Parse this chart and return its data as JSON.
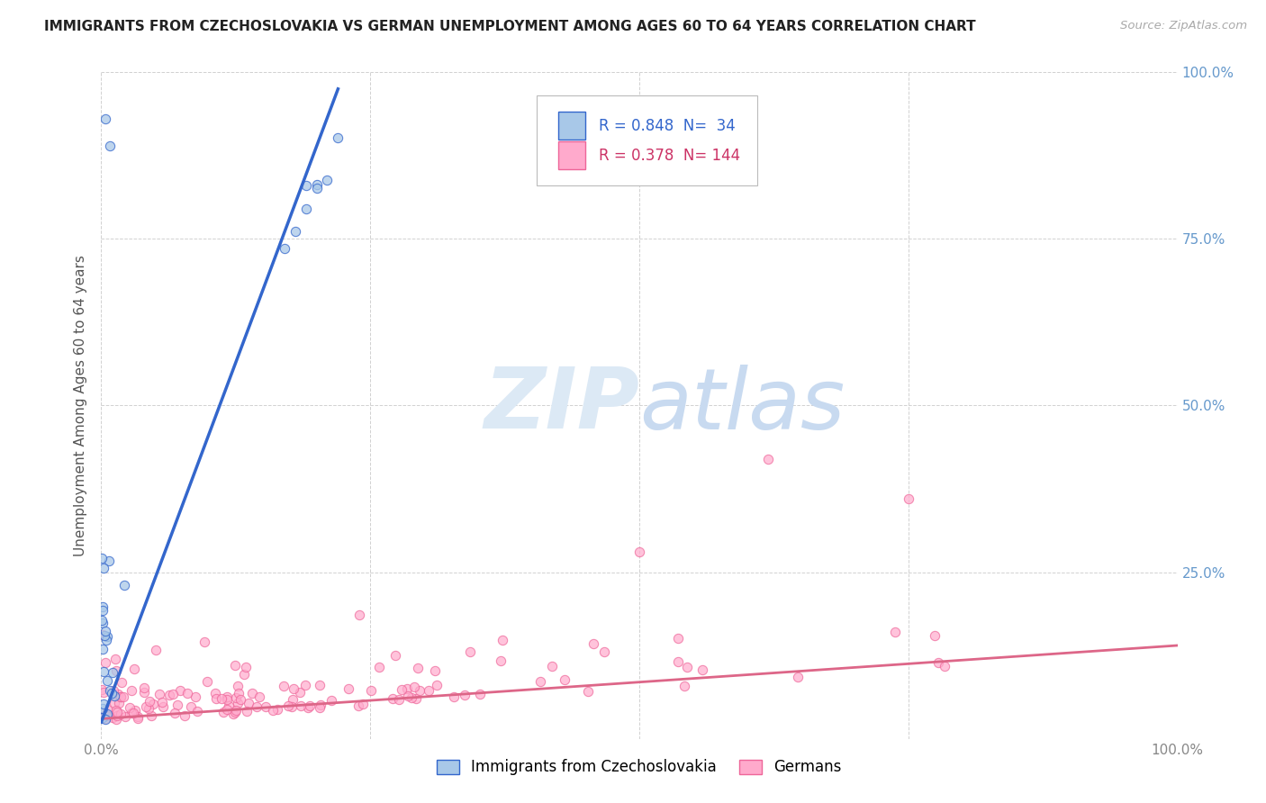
{
  "title": "IMMIGRANTS FROM CZECHOSLOVAKIA VS GERMAN UNEMPLOYMENT AMONG AGES 60 TO 64 YEARS CORRELATION CHART",
  "source": "Source: ZipAtlas.com",
  "ylabel": "Unemployment Among Ages 60 to 64 years",
  "legend_blue_R": "0.848",
  "legend_blue_N": "34",
  "legend_pink_R": "0.378",
  "legend_pink_N": "144",
  "blue_scatter_color": "#a8c8e8",
  "blue_line_color": "#3366cc",
  "pink_scatter_color": "#ffaacc",
  "pink_scatter_edge": "#ee6699",
  "pink_line_color": "#dd6688",
  "watermark_color": "#dce9f5",
  "background_color": "#ffffff",
  "grid_color": "#cccccc",
  "title_color": "#222222",
  "source_color": "#aaaaaa",
  "ylabel_color": "#555555",
  "tick_color": "#888888",
  "right_tick_color": "#6699cc",
  "legend_text_blue": "#3366cc",
  "legend_text_pink": "#cc3366",
  "blue_seed": 42,
  "pink_seed": 123
}
